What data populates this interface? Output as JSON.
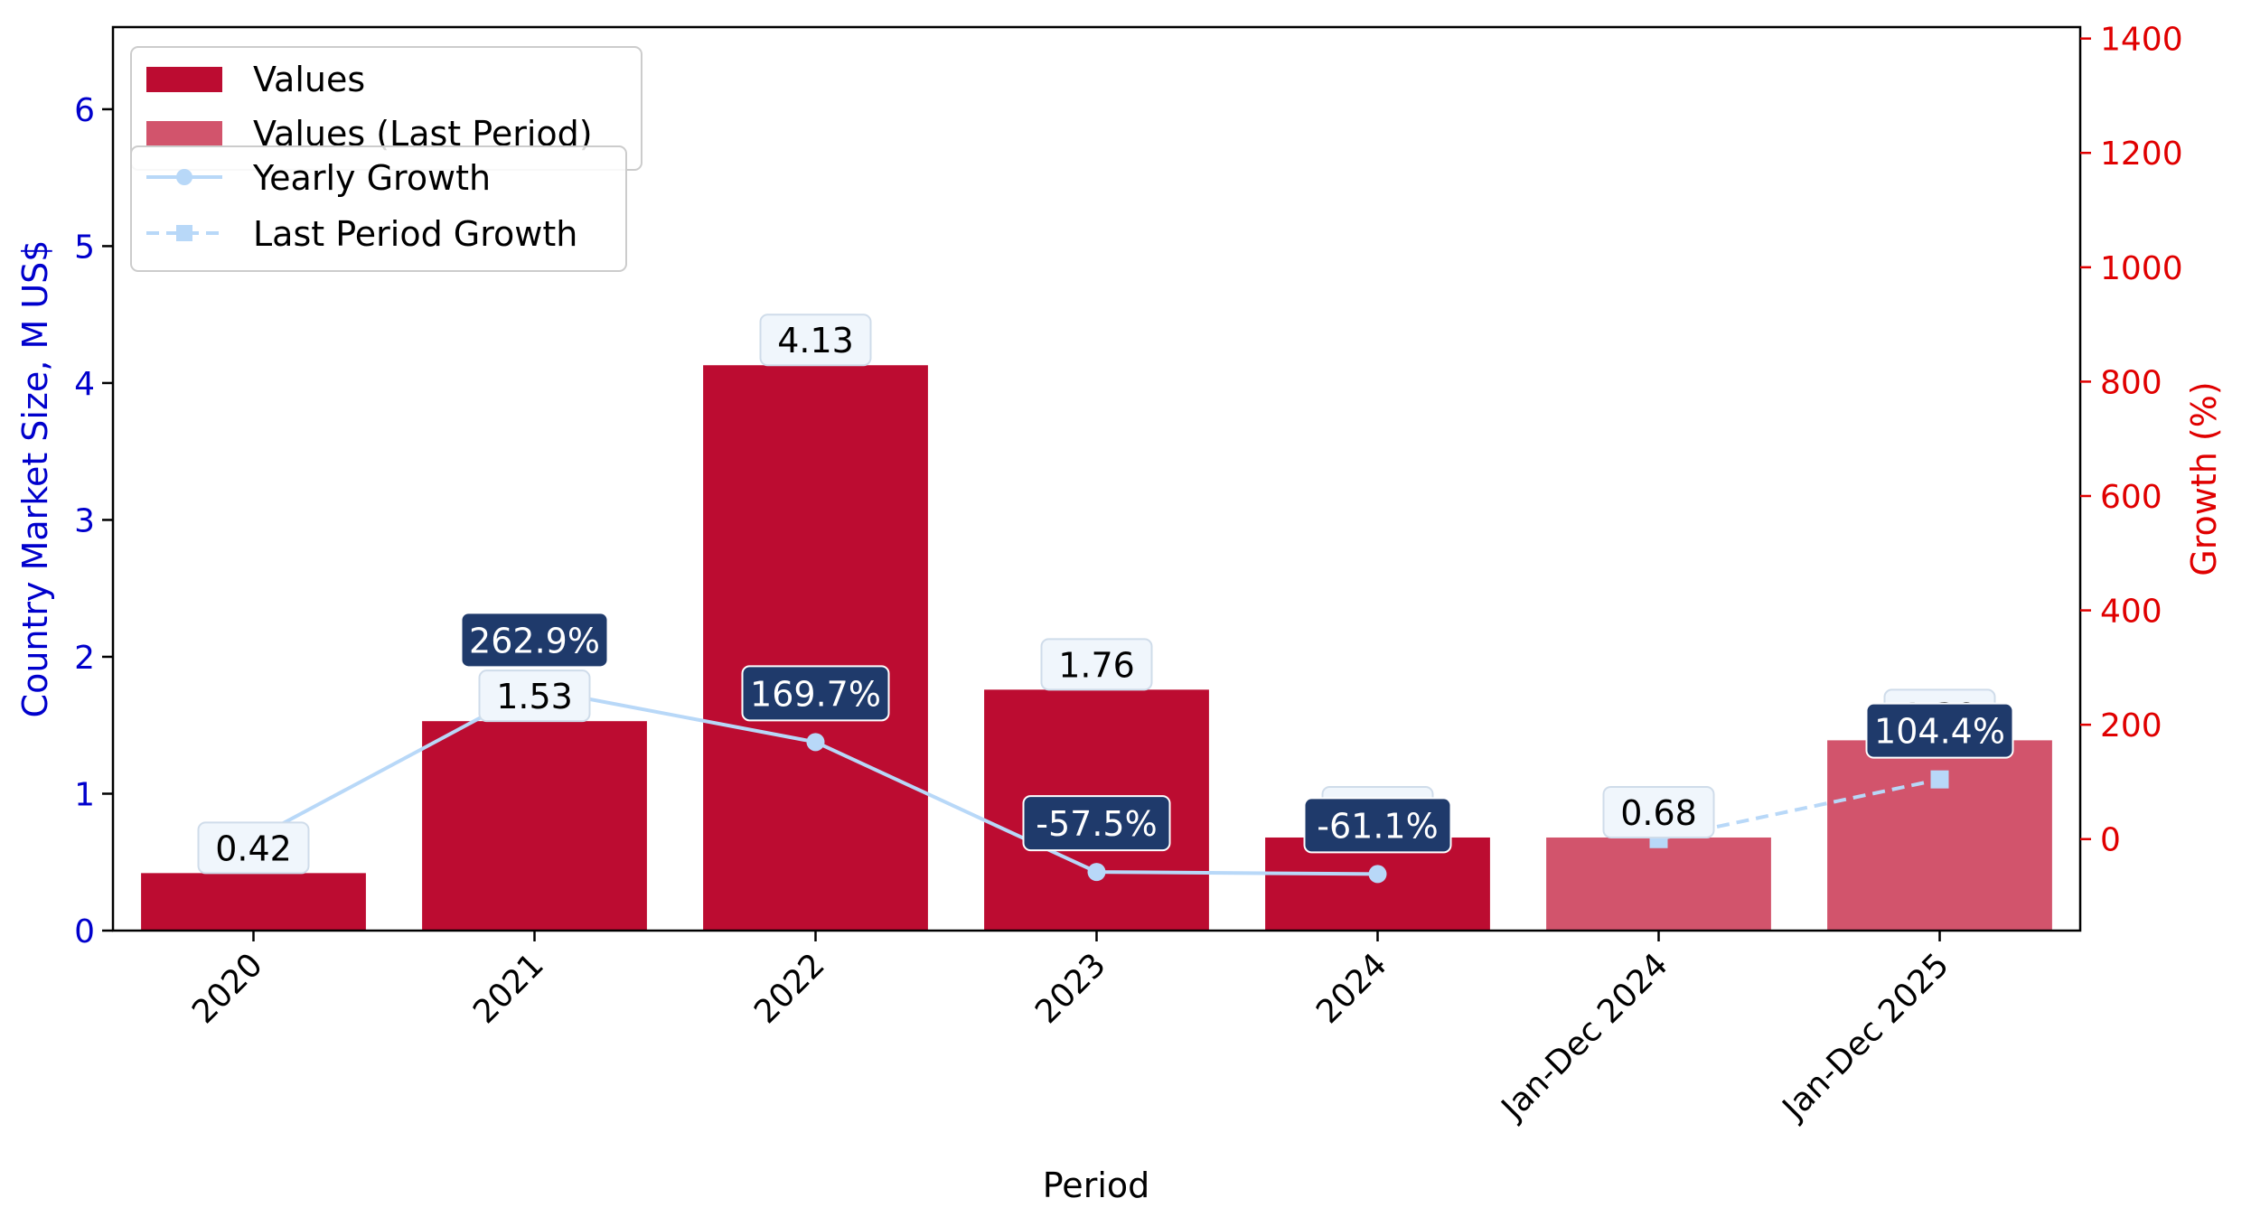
{
  "chart_data": {
    "type": "bar",
    "categories": [
      "2020",
      "2021",
      "2022",
      "2023",
      "2024",
      "Jan-Dec 2024",
      "Jan-Dec 2025"
    ],
    "series": [
      {
        "name": "Values",
        "values": [
          0.42,
          1.53,
          4.13,
          1.76,
          0.68,
          null,
          null
        ]
      },
      {
        "name": "Values (Last Period)",
        "values": [
          null,
          null,
          null,
          null,
          null,
          0.68,
          1.39
        ]
      },
      {
        "name": "Yearly Growth",
        "values": [
          0,
          262.9,
          169.7,
          -57.5,
          -61.1,
          null,
          null
        ],
        "axis": "right"
      },
      {
        "name": "Last Period Growth",
        "values": [
          null,
          null,
          null,
          null,
          null,
          0,
          104.4
        ],
        "axis": "right"
      }
    ],
    "value_labels": [
      "0.42",
      "1.53",
      "4.13",
      "1.76",
      "0.68",
      "0.68",
      "1.39"
    ],
    "growth_labels": [
      "",
      "262.9%",
      "169.7%",
      "-57.5%",
      "-61.1%",
      "",
      "104.4%"
    ],
    "xlabel": "Period",
    "ylabel": "Country Market Size, M US$",
    "y2label": "Growth (%)",
    "ylim": [
      0,
      6.6
    ],
    "y2lim": [
      -160,
      1420
    ],
    "yticks": [
      0,
      1,
      2,
      3,
      4,
      5,
      6
    ],
    "y2ticks": [
      0,
      200,
      400,
      600,
      800,
      1000,
      1200,
      1400
    ],
    "legend_position": "top-left",
    "colors": {
      "values": "#bc0c31",
      "last_period": "#d2546c",
      "growth_line": "#b8d8f8",
      "growth_label_bg": "#1f3a6b",
      "value_label_bg": "#f0f6fc",
      "left_axis": "#0000cc",
      "right_axis": "#e00000"
    }
  }
}
